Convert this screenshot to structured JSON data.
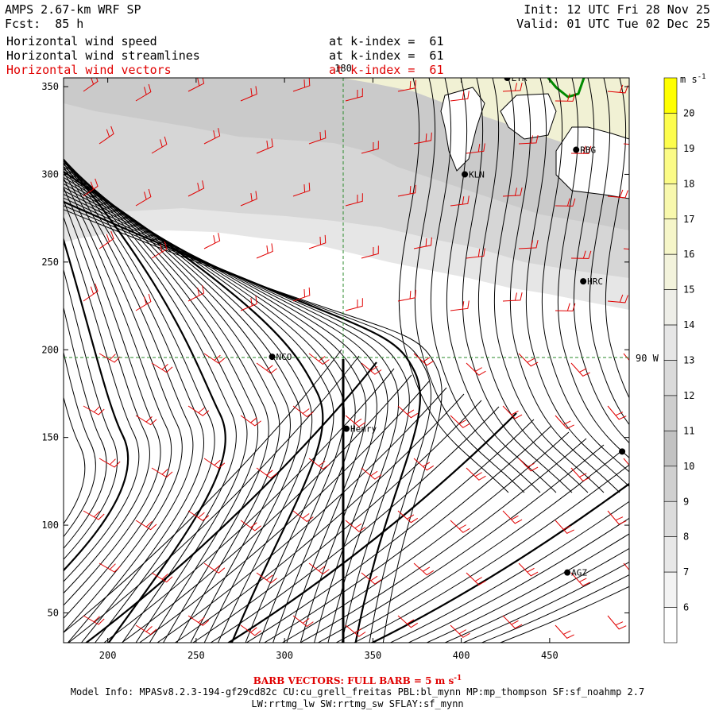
{
  "header": {
    "title": "AMPS 2.67-km WRF SP",
    "forecast": "Fcst:  85 h",
    "init": "Init: 12 UTC Fri 28 Nov 25",
    "valid": "Valid: 01 UTC Tue 02 Dec 25",
    "fields": [
      {
        "name": "Horizontal wind speed",
        "level": "at k-index =  61",
        "color": "#000000"
      },
      {
        "name": "Horizontal wind streamlines",
        "level": "at k-index =  61",
        "color": "#000000"
      },
      {
        "name": "Horizontal wind vectors",
        "level": "at k-index =  61",
        "color": "#e00000"
      }
    ]
  },
  "axes": {
    "x_ticks": [
      "200",
      "250",
      "300",
      "350",
      "400",
      "450"
    ],
    "y_ticks": [
      "350",
      "300",
      "250",
      "200",
      "150",
      "100",
      "50"
    ],
    "x_range": [
      175,
      495
    ],
    "y_range": [
      33,
      355
    ],
    "meridian_label": "180",
    "parallel_label": "90 W"
  },
  "stations": [
    {
      "name": "LYR",
      "x": 426,
      "y": 355
    },
    {
      "name": "RBG",
      "x": 465,
      "y": 314
    },
    {
      "name": "KLN",
      "x": 402,
      "y": 300
    },
    {
      "name": "HRC",
      "x": 469,
      "y": 239
    },
    {
      "name": "NCO",
      "x": 293,
      "y": 196
    },
    {
      "name": "Henry",
      "x": 335,
      "y": 155
    },
    {
      "name": "",
      "x": 491,
      "y": 142
    },
    {
      "name": "AGZ",
      "x": 460,
      "y": 73
    }
  ],
  "colorbar": {
    "unit": "m s",
    "unit_exp": "-1",
    "labels": [
      "20",
      "19",
      "18",
      "17",
      "16",
      "15",
      "14",
      "13",
      "12",
      "11",
      "10",
      "9",
      "8",
      "7",
      "6"
    ],
    "colors": [
      "#ffff00",
      "#fdfd4d",
      "#fbfb86",
      "#f8f8ad",
      "#f6f6c9",
      "#f3f3dc",
      "#eeeee8",
      "#e6e6e6",
      "#dadada",
      "#cecece",
      "#c2c2c2",
      "#d0d0d0",
      "#dcdcdc",
      "#e8e8e8",
      "#f3f3f3",
      "#ffffff"
    ]
  },
  "footer": {
    "barb": "BARB VECTORS:  FULL BARB = 5 m s",
    "barb_exp": "-1",
    "model_info": "Model Info: MPASv8.2.3-194-gf29cd82c CU:cu_grell_freitas PBL:bl_mynn MP:mp_thompson SF:sf_noahmp 2.7",
    "model_info2": "LW:rrtmg_lw SW:rrtmg_sw SFLAY:sf_mynn"
  }
}
